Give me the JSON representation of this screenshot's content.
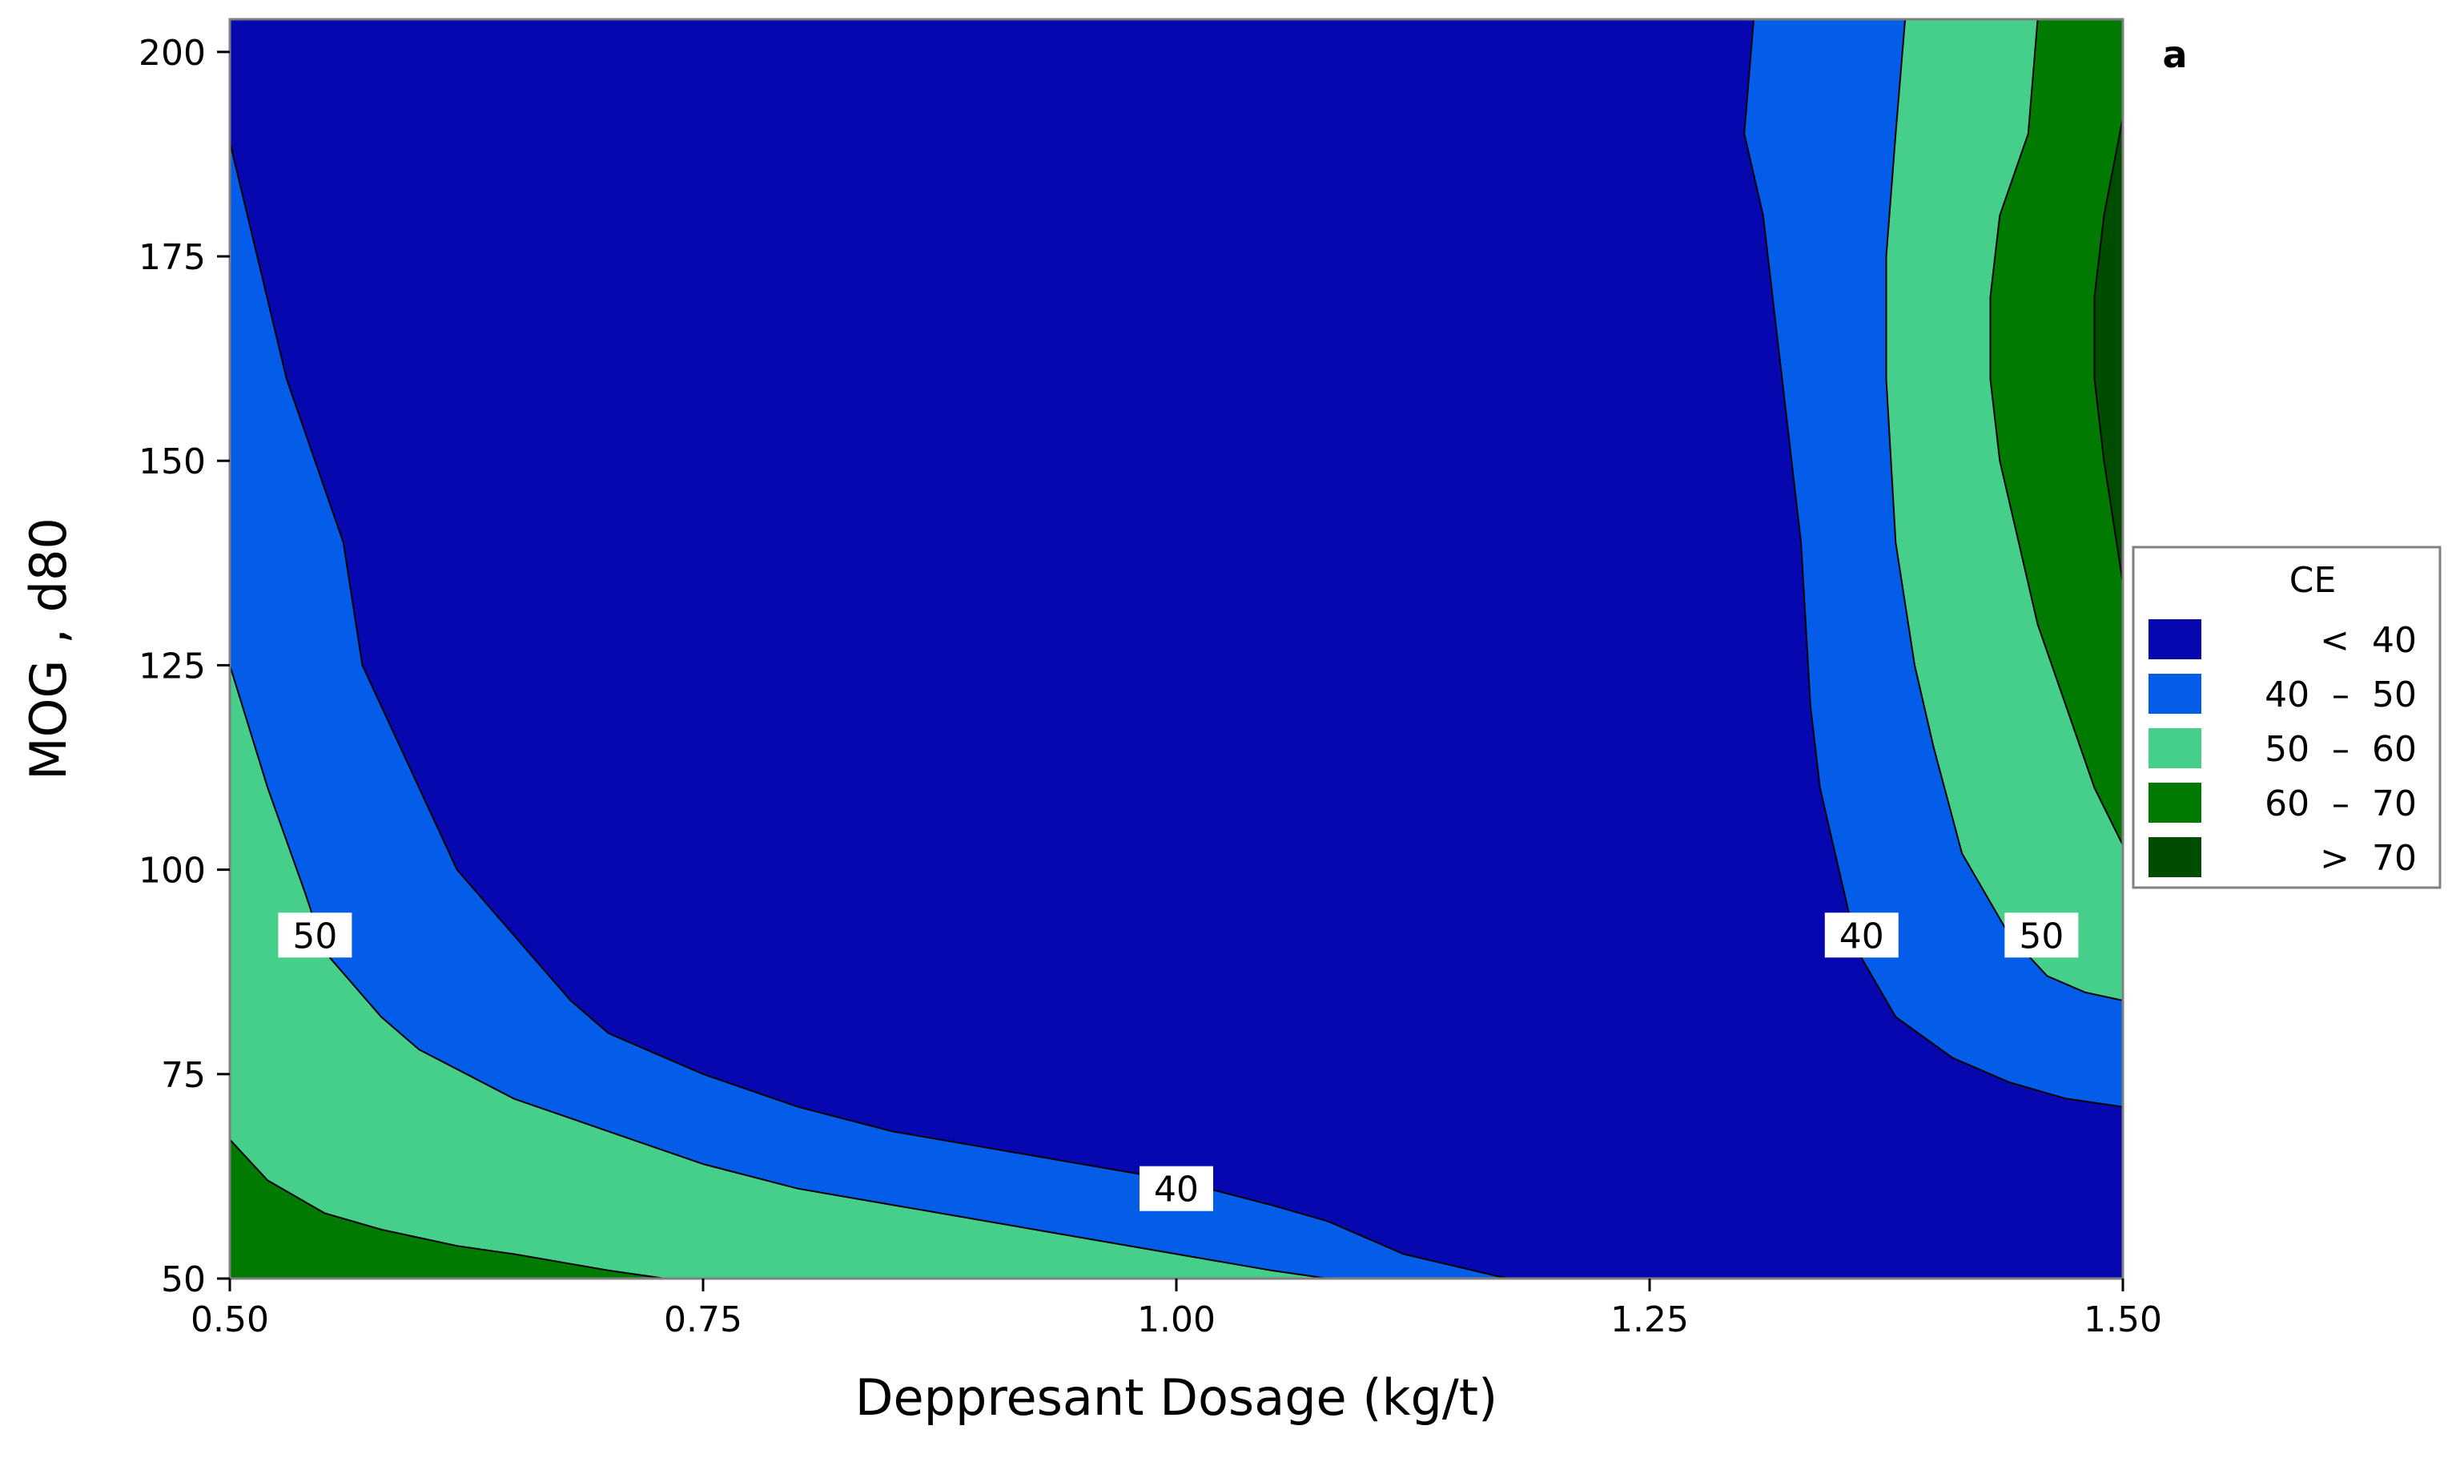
{
  "chart_data": {
    "type": "contour",
    "panel_label": "a",
    "xlabel": "Deppresant Dosage (kg/t)",
    "ylabel": "MOG , d80",
    "xlim": [
      0.5,
      1.5
    ],
    "ylim": [
      50,
      204
    ],
    "x_ticks": [
      "0.50",
      "0.75",
      "1.00",
      "1.25",
      "1.50"
    ],
    "y_ticks": [
      "50",
      "75",
      "100",
      "125",
      "150",
      "175",
      "200"
    ],
    "legend": {
      "title": "CE",
      "placement": "right",
      "entries": [
        {
          "label": "<  40",
          "color": "#0707B0"
        },
        {
          "label": "40  –  50",
          "color": "#035DE8"
        },
        {
          "label": "50  –  60",
          "color": "#45CF8B"
        },
        {
          "label": "60  –  70",
          "color": "#007A00"
        },
        {
          "label": ">  70",
          "color": "#004C00"
        }
      ]
    },
    "contour_labels": [
      {
        "text": "50",
        "x": 0.545,
        "y": 92
      },
      {
        "text": "40",
        "x": 1.0,
        "y": 61
      },
      {
        "text": "40",
        "x": 1.362,
        "y": 92
      },
      {
        "text": "50",
        "x": 1.457,
        "y": 92
      }
    ],
    "regions": [
      {
        "level": "40  –  50",
        "color": "#035DE8",
        "points": [
          [
            0.5,
            50
          ],
          [
            0.5,
            189
          ],
          [
            0.53,
            160
          ],
          [
            0.56,
            140
          ],
          [
            0.57,
            125
          ],
          [
            0.6,
            110
          ],
          [
            0.62,
            100
          ],
          [
            0.65,
            92
          ],
          [
            0.68,
            84
          ],
          [
            0.7,
            80
          ],
          [
            0.75,
            75
          ],
          [
            0.8,
            71
          ],
          [
            0.85,
            68
          ],
          [
            0.9,
            66
          ],
          [
            1.0,
            62
          ],
          [
            1.05,
            59
          ],
          [
            1.08,
            57
          ],
          [
            1.12,
            53
          ],
          [
            1.175,
            50
          ]
        ]
      },
      {
        "level": "50  –  60",
        "color": "#45CF8B",
        "points": [
          [
            0.5,
            50
          ],
          [
            0.5,
            125
          ],
          [
            0.52,
            110
          ],
          [
            0.54,
            97
          ],
          [
            0.55,
            90
          ],
          [
            0.58,
            82
          ],
          [
            0.6,
            78
          ],
          [
            0.65,
            72
          ],
          [
            0.7,
            68
          ],
          [
            0.75,
            64
          ],
          [
            0.8,
            61
          ],
          [
            0.85,
            59
          ],
          [
            0.9,
            57
          ],
          [
            0.95,
            55
          ],
          [
            1.0,
            53
          ],
          [
            1.05,
            51
          ],
          [
            1.08,
            50
          ]
        ]
      },
      {
        "level": "60  –  70",
        "color": "#007A00",
        "points": [
          [
            0.5,
            50
          ],
          [
            0.5,
            67
          ],
          [
            0.52,
            62
          ],
          [
            0.55,
            58
          ],
          [
            0.58,
            56
          ],
          [
            0.62,
            54
          ],
          [
            0.65,
            53
          ],
          [
            0.7,
            51
          ],
          [
            0.73,
            50
          ]
        ]
      },
      {
        "level": "40  –  50",
        "color": "#035DE8",
        "points": [
          [
            1.305,
            204
          ],
          [
            1.3,
            190
          ],
          [
            1.31,
            180
          ],
          [
            1.32,
            160
          ],
          [
            1.33,
            140
          ],
          [
            1.335,
            120
          ],
          [
            1.34,
            110
          ],
          [
            1.35,
            100
          ],
          [
            1.36,
            90
          ],
          [
            1.38,
            82
          ],
          [
            1.41,
            77
          ],
          [
            1.44,
            74
          ],
          [
            1.47,
            72
          ],
          [
            1.5,
            71
          ],
          [
            1.5,
            204
          ]
        ]
      },
      {
        "level": "50  –  60",
        "color": "#45CF8B",
        "points": [
          [
            1.385,
            204
          ],
          [
            1.38,
            190
          ],
          [
            1.375,
            175
          ],
          [
            1.375,
            160
          ],
          [
            1.38,
            140
          ],
          [
            1.39,
            125
          ],
          [
            1.4,
            115
          ],
          [
            1.415,
            102
          ],
          [
            1.44,
            92
          ],
          [
            1.46,
            87
          ],
          [
            1.48,
            85
          ],
          [
            1.5,
            84
          ],
          [
            1.5,
            204
          ]
        ]
      },
      {
        "level": "60  –  70",
        "color": "#007A00",
        "points": [
          [
            1.455,
            204
          ],
          [
            1.45,
            190
          ],
          [
            1.435,
            180
          ],
          [
            1.43,
            170
          ],
          [
            1.43,
            160
          ],
          [
            1.435,
            150
          ],
          [
            1.445,
            140
          ],
          [
            1.455,
            130
          ],
          [
            1.47,
            120
          ],
          [
            1.485,
            110
          ],
          [
            1.5,
            103
          ],
          [
            1.5,
            204
          ]
        ]
      },
      {
        "level": ">  70",
        "color": "#004C00",
        "points": [
          [
            1.5,
            192
          ],
          [
            1.49,
            180
          ],
          [
            1.485,
            170
          ],
          [
            1.485,
            160
          ],
          [
            1.49,
            150
          ],
          [
            1.5,
            135
          ]
        ]
      }
    ]
  }
}
